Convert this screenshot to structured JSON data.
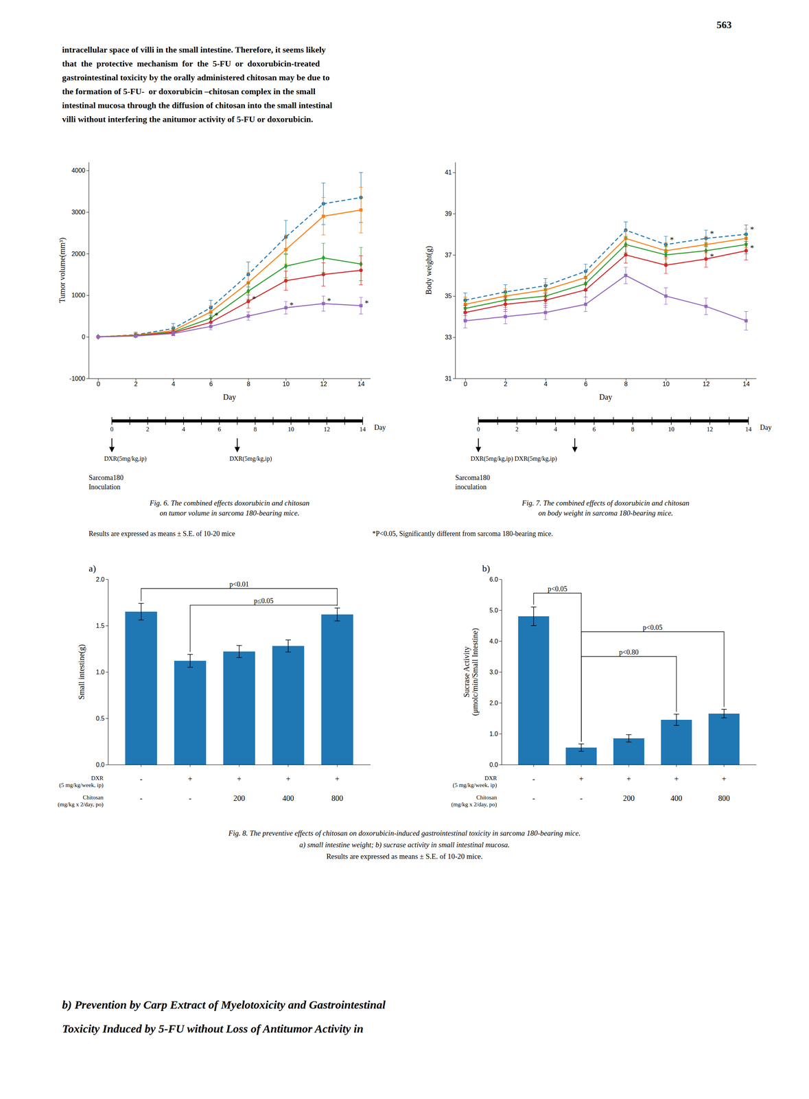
{
  "page_number": "563",
  "header_lines": [
    "intracellular space of villi in the small intestine. Therefore, it seems likely",
    "that  the  protective  mechanism  for  the  5-FU  or  doxorubicin-treated",
    "gastrointestinal toxicity by the orally administered chitosan may be due to",
    "the formation of 5-FU-  or doxorubicin –chitosan complex in the small",
    "intestinal mucosa through the diffusion of chitosan into the small intestinal",
    "villi without interfering the anitumor activity of 5-FU or doxorubicin."
  ],
  "chart_data": [
    {
      "type": "line",
      "x": [
        0,
        2,
        4,
        6,
        8,
        10,
        12,
        14
      ],
      "series": [
        {
          "marker": "circle",
          "line_style": "dashed",
          "values": [
            0,
            50,
            200,
            700,
            1500,
            2400,
            3200,
            3350
          ],
          "errors": [
            0,
            60,
            120,
            180,
            300,
            400,
            500,
            600
          ]
        },
        {
          "marker": "square",
          "line_style": "solid",
          "values": [
            0,
            40,
            150,
            600,
            1300,
            2100,
            2900,
            3050
          ],
          "errors": [
            0,
            50,
            100,
            150,
            250,
            350,
            450,
            550
          ]
        },
        {
          "marker": "diamond",
          "line_style": "solid",
          "values": [
            0,
            30,
            120,
            450,
            1100,
            1700,
            1900,
            1750
          ],
          "errors": [
            0,
            40,
            90,
            120,
            200,
            280,
            350,
            400
          ]
        },
        {
          "marker": "circle",
          "line_style": "solid",
          "values": [
            0,
            25,
            100,
            350,
            850,
            1350,
            1500,
            1600
          ],
          "errors": [
            0,
            30,
            70,
            100,
            160,
            230,
            280,
            350
          ]
        },
        {
          "marker": "square",
          "line_style": "solid",
          "values": [
            0,
            20,
            80,
            250,
            500,
            700,
            800,
            750
          ],
          "errors": [
            0,
            20,
            50,
            80,
            100,
            150,
            180,
            200
          ]
        }
      ],
      "xlabel": "Day",
      "ylabel": "Tumor volume(mm³)",
      "xlim": [
        -0.5,
        14.5
      ],
      "xticks": [
        0,
        2,
        4,
        6,
        8,
        10,
        12,
        14
      ],
      "ylim": [
        -1000,
        4200
      ],
      "yticks": [
        -1000,
        0,
        1000,
        2000,
        3000,
        4000
      ],
      "annotations": [
        {
          "text": "*",
          "x": 6.2,
          "y": 450
        },
        {
          "text": "*",
          "x": 8.2,
          "y": 850
        },
        {
          "text": "*",
          "x": 10.2,
          "y": 700
        },
        {
          "text": "*",
          "x": 12.2,
          "y": 800
        },
        {
          "text": "*",
          "x": 14.2,
          "y": 750
        }
      ],
      "timeline": {
        "xlim": [
          0,
          14
        ],
        "ticks": [
          0,
          2,
          4,
          6,
          8,
          10,
          12,
          14
        ],
        "minor_ticks": [
          0,
          1,
          2,
          3,
          4,
          5,
          6,
          7,
          8,
          9,
          10,
          11,
          12,
          13,
          14
        ],
        "label": "Day",
        "arrows": [
          0,
          7
        ],
        "arrow_labels": [
          {
            "x": 0,
            "text": "DXR(5mg/kg,ip)"
          },
          {
            "x": 7,
            "text": "DXR(5mg/kg,ip)"
          }
        ],
        "event_lines": [
          "Sarcoma180",
          "Inoculation"
        ]
      },
      "caption": [
        "Fig. 6. The combined effects doxorubicin and chitosan",
        "on tumor volume in sarcoma 180-bearing mice."
      ]
    },
    {
      "type": "line",
      "x": [
        0,
        2,
        4,
        6,
        8,
        10,
        12,
        14
      ],
      "series": [
        {
          "marker": "circle",
          "line_style": "dashed",
          "values": [
            34.8,
            35.2,
            35.5,
            36.2,
            38.2,
            37.5,
            37.8,
            38.0
          ],
          "errors": [
            0.35,
            0.35,
            0.35,
            0.35,
            0.4,
            0.4,
            0.4,
            0.45
          ]
        },
        {
          "marker": "square",
          "line_style": "solid",
          "values": [
            34.6,
            35.0,
            35.3,
            35.9,
            37.8,
            37.2,
            37.5,
            37.8
          ],
          "errors": [
            0.35,
            0.35,
            0.35,
            0.35,
            0.4,
            0.4,
            0.4,
            0.45
          ]
        },
        {
          "marker": "diamond",
          "line_style": "solid",
          "values": [
            34.4,
            34.8,
            35.0,
            35.6,
            37.5,
            37.0,
            37.2,
            37.5
          ],
          "errors": [
            0.35,
            0.35,
            0.35,
            0.35,
            0.4,
            0.4,
            0.4,
            0.45
          ]
        },
        {
          "marker": "circle",
          "line_style": "solid",
          "values": [
            34.2,
            34.6,
            34.8,
            35.3,
            37.0,
            36.5,
            36.8,
            37.2
          ],
          "errors": [
            0.35,
            0.35,
            0.35,
            0.35,
            0.4,
            0.4,
            0.4,
            0.45
          ]
        },
        {
          "marker": "square",
          "line_style": "solid",
          "values": [
            33.8,
            34.0,
            34.2,
            34.6,
            36.0,
            35.0,
            34.5,
            33.8
          ],
          "errors": [
            0.35,
            0.35,
            0.35,
            0.35,
            0.4,
            0.4,
            0.4,
            0.45
          ]
        }
      ],
      "xlabel": "Day",
      "ylabel": "Body weight(g)",
      "xlim": [
        -0.5,
        14.5
      ],
      "xticks": [
        0,
        2,
        4,
        6,
        8,
        10,
        12,
        14
      ],
      "ylim": [
        31,
        41.5
      ],
      "yticks": [
        31,
        33,
        35,
        37,
        39,
        41
      ],
      "annotations": [
        {
          "text": "*",
          "x": 10.2,
          "y": 37.6
        },
        {
          "text": "*",
          "x": 12.2,
          "y": 37.9
        },
        {
          "text": "*",
          "x": 14.2,
          "y": 38.1
        },
        {
          "text": "*",
          "x": 12.2,
          "y": 36.8
        },
        {
          "text": "*",
          "x": 14.2,
          "y": 37.2
        }
      ],
      "timeline": {
        "xlim": [
          0,
          14
        ],
        "ticks": [
          0,
          2,
          4,
          6,
          8,
          10,
          12,
          14
        ],
        "minor_ticks": [
          0,
          1,
          2,
          3,
          4,
          5,
          6,
          7,
          8,
          9,
          10,
          11,
          12,
          13,
          14
        ],
        "label": "Day",
        "arrows": [
          0,
          5
        ],
        "arrow_labels": [
          {
            "x": 0,
            "text": "DXR(5mg/kg,ip) DXR(5mg/kg,ip)"
          }
        ],
        "event_lines": [
          "Sarcoma180",
          "inoculation"
        ]
      },
      "caption": [
        "Fig. 7. The combined effects of doxorubicin and chitosan",
        "on body weight in sarcoma 180-bearing mice."
      ]
    },
    {
      "type": "bar",
      "title": "a)",
      "categories": [
        null,
        null,
        null,
        null,
        null
      ],
      "values": [
        1.65,
        1.12,
        1.22,
        1.28,
        1.62
      ],
      "errors": [
        0.09,
        0.07,
        0.065,
        0.065,
        0.07
      ],
      "ylabel": "Small intestine(g)",
      "ylim": [
        0.0,
        2.0
      ],
      "yticks": [
        {
          "value": 0.0,
          "label": "0.0"
        },
        0.5,
        {
          "value": 1.0,
          "label": "1.0"
        },
        1.5,
        {
          "value": 2.0,
          "label": "2.0"
        }
      ],
      "category_rows": [
        {
          "label": "DXR\n(5 mg/kg/week, ip)",
          "labels": [
            "-",
            "+",
            "+",
            "+",
            "+"
          ]
        },
        {
          "label": "Chitosan\n(mg/kg x 2/day, po)",
          "labels": [
            "-",
            "-",
            "200",
            "400",
            "800"
          ]
        }
      ],
      "brackets": [
        {
          "from": 0,
          "to": 4,
          "y": 1.9,
          "label": "p<0.01"
        },
        {
          "from": 1,
          "to": 4,
          "y": 1.72,
          "label": "p≤0.05"
        }
      ]
    },
    {
      "type": "bar",
      "title": "b)",
      "categories": [
        null,
        null,
        null,
        null,
        null
      ],
      "values": [
        4.8,
        0.55,
        0.85,
        1.45,
        1.65
      ],
      "errors": [
        0.3,
        0.12,
        0.12,
        0.18,
        0.14
      ],
      "ylabel": "Sucrase Activity\n(μmolc/min/Small Intestine)",
      "ylim": [
        0.0,
        6.0
      ],
      "yticks": [
        {
          "value": 0.0,
          "label": "0.0"
        },
        {
          "value": 1.0,
          "label": "1.0"
        },
        {
          "value": 2.0,
          "label": "2.0"
        },
        {
          "value": 3.0,
          "label": "3.0"
        },
        {
          "value": 4.0,
          "label": "4.0"
        },
        {
          "value": 5.0,
          "label": "5.0"
        },
        {
          "value": 6.0,
          "label": "6.0"
        }
      ],
      "category_rows": [
        {
          "label": "DXR\n(5 mg/kg/week, ip)",
          "labels": [
            "-",
            "+",
            "+",
            "+",
            "+"
          ]
        },
        {
          "label": "Chitosan\n(mg/kg x 2/day, po)",
          "labels": [
            "-",
            "-",
            "200",
            "400",
            "800"
          ]
        }
      ],
      "brackets": [
        {
          "from": 0,
          "to": 1,
          "y": 5.55,
          "label": "p<0.05"
        },
        {
          "from": 1,
          "to": 3,
          "y": 3.5,
          "label": "p<0.80"
        },
        {
          "from": 1,
          "to": 4,
          "y": 4.3,
          "label": "p<0.05"
        }
      ]
    }
  ],
  "notes": [
    "Results are expressed as means ± S.E. of 10-20 mice",
    "*P<0.05, Significantly different from sarcoma 180-bearing mice."
  ],
  "fig8_caption": [
    "Fig. 8. The preventive effects of chitosan on doxorubicin-induced gastrointestinal toxicity in sarcoma 180-bearing mice.",
    "a) small intestine weight; b) sucrase activity in small intestinal mucosa.",
    "Results are expressed as means ± S.E. of 10-20 mice."
  ],
  "footer_lines": [
    "b) Prevention by Carp Extract of Myelotoxicity and Gastrointestinal",
    "Toxicity Induced by 5-FU without Loss of Antitumor Activity in"
  ]
}
